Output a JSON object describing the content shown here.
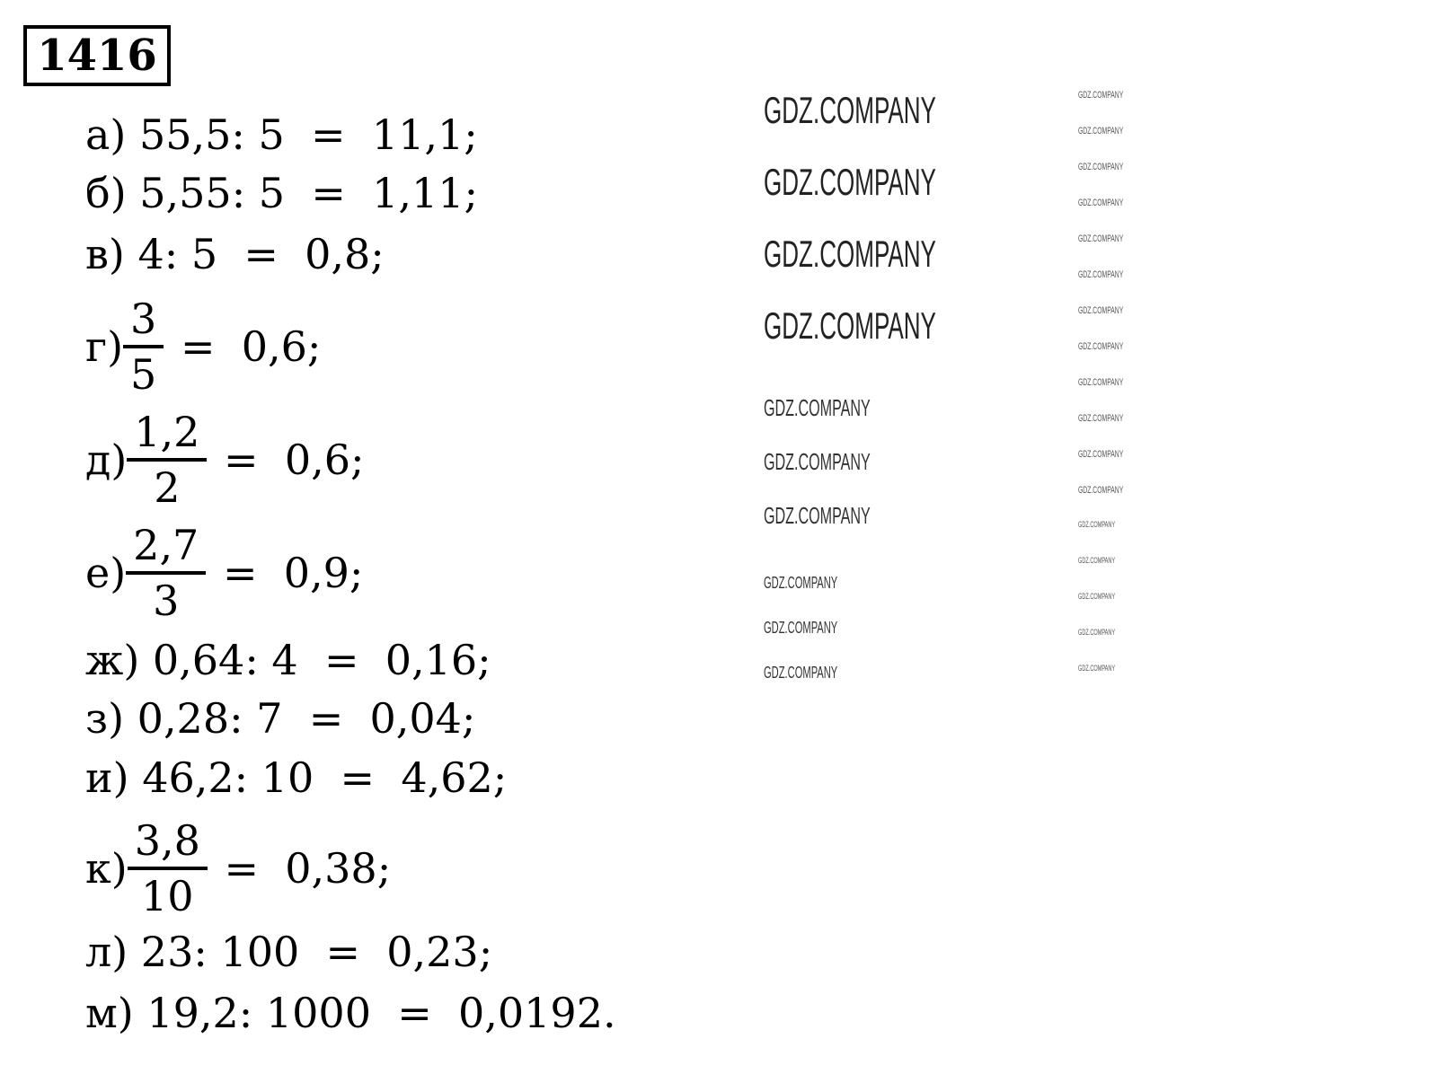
{
  "problem_number": "1416",
  "watermark": "GDZ.COMPANY",
  "rows": [
    {
      "label": "а)",
      "expr": "55,5: 5  =  11,1;"
    },
    {
      "label": "б)",
      "expr": "5,55: 5  =  1,11;"
    },
    {
      "label": "в)",
      "expr": "4: 5  =  0,8;"
    },
    {
      "label": "г)",
      "num": "3",
      "den": "5",
      "rest": " =  0,6;"
    },
    {
      "label": "д)",
      "num": "1,2",
      "den": "2",
      "rest": " =  0,6;"
    },
    {
      "label": "е)",
      "num": "2,7",
      "den": "3",
      "rest": " =  0,9;"
    },
    {
      "label": "ж)",
      "expr": "0,64: 4  =  0,16;"
    },
    {
      "label": "з)",
      "expr": "0,28: 7  =  0,04;"
    },
    {
      "label": "и)",
      "expr": "46,2: 10  =  4,62;"
    },
    {
      "label": "к)",
      "num": "3,8",
      "den": "10",
      "rest": " =  0,38;"
    },
    {
      "label": "л)",
      "expr": "23: 100  =  0,23;"
    },
    {
      "label": "м)",
      "expr": "19,2: 1000  =  0,0192."
    }
  ]
}
